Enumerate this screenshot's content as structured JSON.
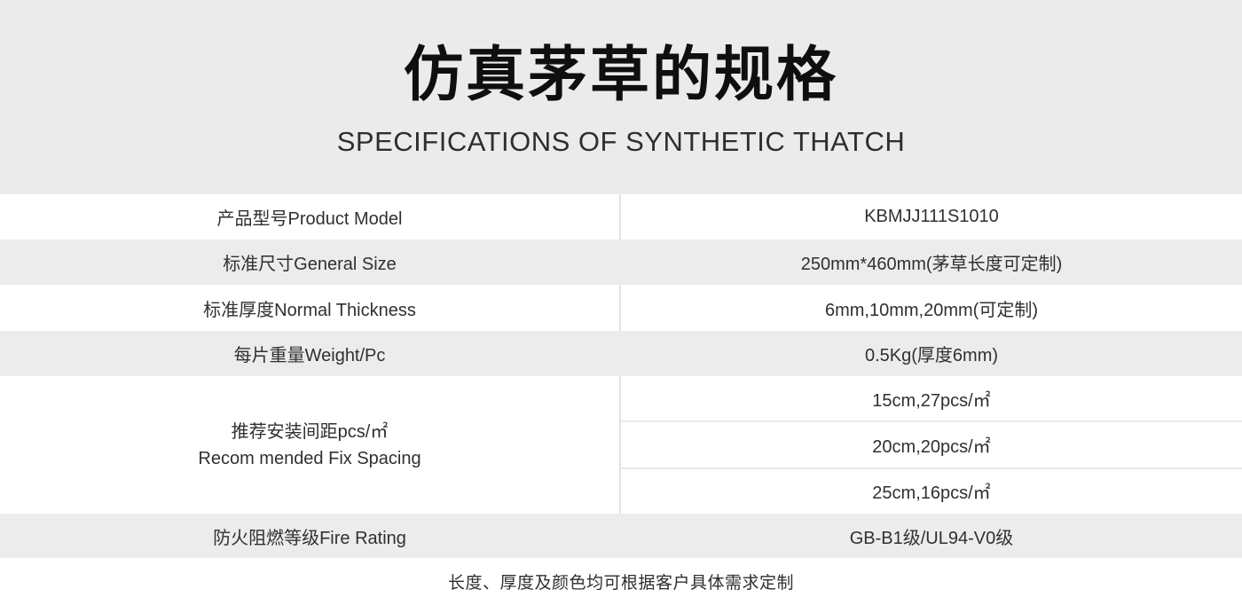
{
  "theme": {
    "header_bg": "#ebebeb",
    "stripe_bg": "#ececec",
    "divider": "#e3e3e3",
    "subsep": "#eaeaea",
    "text": "#303030",
    "title_color": "#0f0f0f",
    "page_bg": "#ffffff"
  },
  "header": {
    "title": "仿真茅草的规格",
    "subtitle": "SPECIFICATIONS OF SYNTHETIC THATCH"
  },
  "table": {
    "rows": [
      {
        "label": "产品型号Product Model",
        "value": "KBMJJ111S1010"
      },
      {
        "label": "标准尺寸General Size",
        "value": "250mm*460mm(茅草长度可定制)"
      },
      {
        "label": "标准厚度Normal Thickness",
        "value": "6mm,10mm,20mm(可定制)"
      },
      {
        "label": "每片重量Weight/Pc",
        "value": "0.5Kg(厚度6mm)"
      }
    ],
    "spacing_row": {
      "label_line1": "推荐安装间距pcs/㎡",
      "label_line2": "Recom mended Fix Spacing",
      "values": [
        "15cm,27pcs/㎡",
        "20cm,20pcs/㎡",
        "25cm,16pcs/㎡"
      ]
    },
    "fire_row": {
      "label": "防火阻燃等级Fire Rating",
      "value": "GB-B1级/UL94-V0级"
    }
  },
  "footer": {
    "note": "长度、厚度及颜色均可根据客户具体需求定制"
  }
}
